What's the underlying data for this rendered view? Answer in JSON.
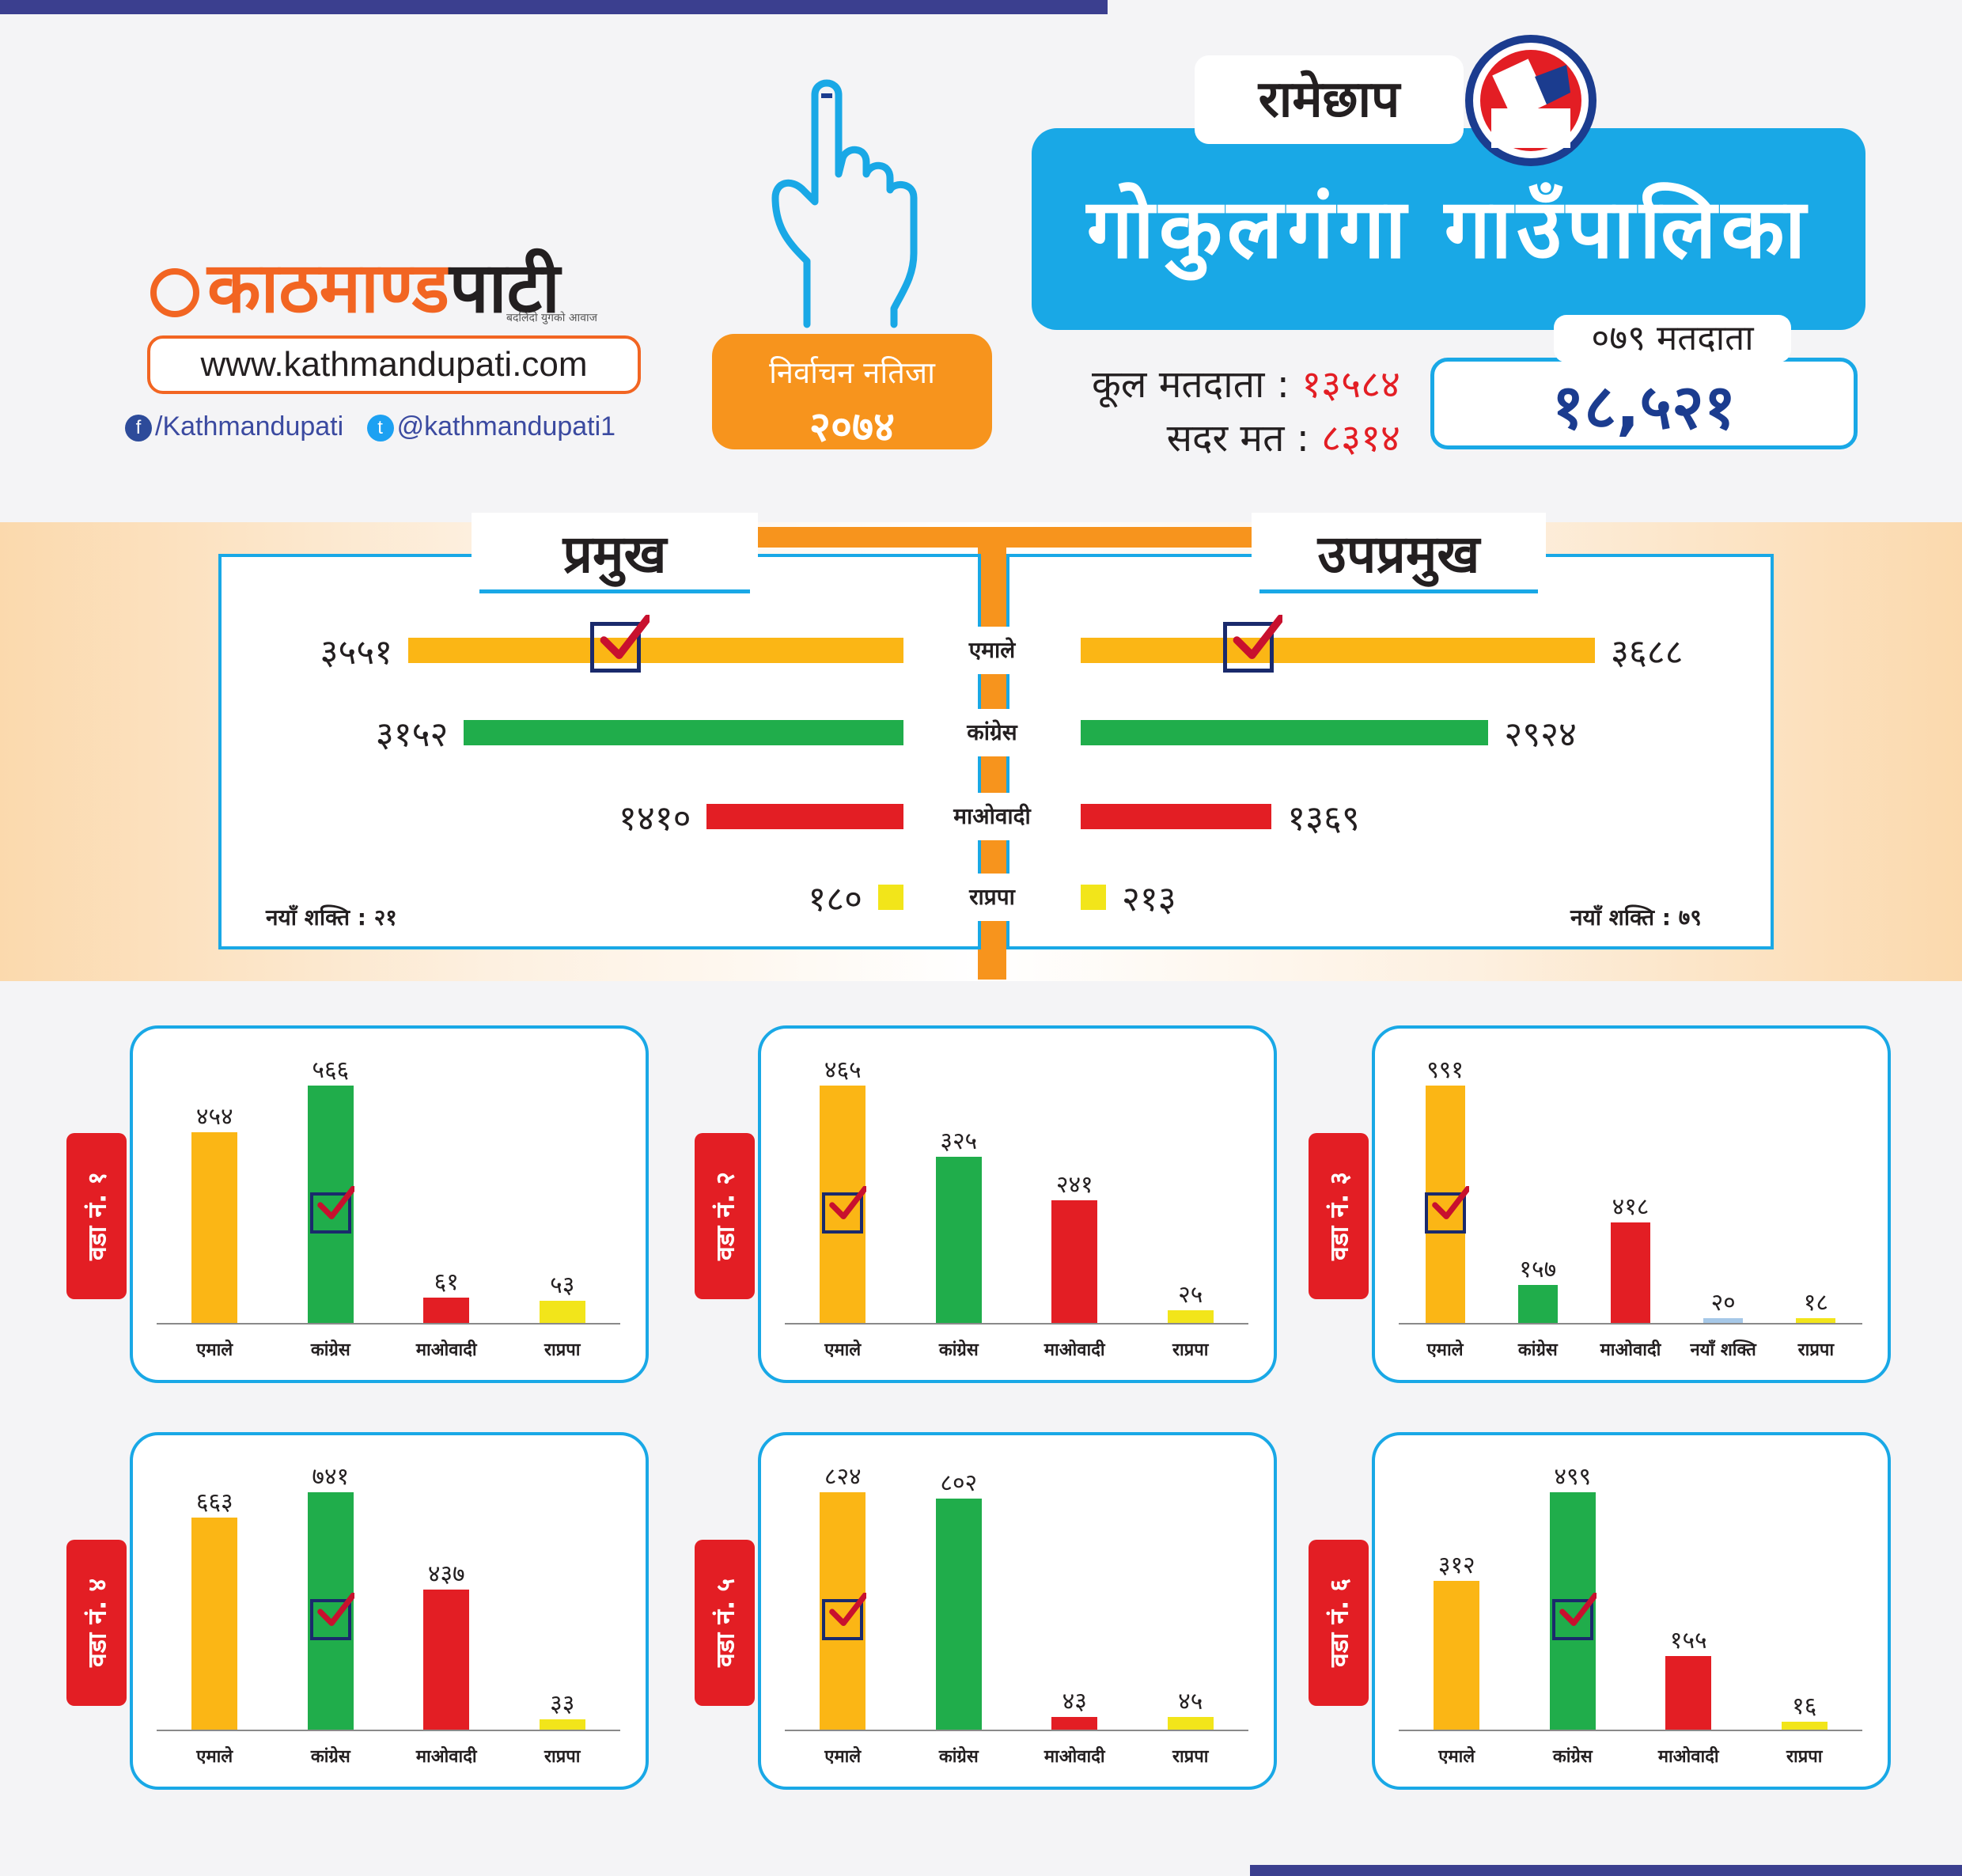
{
  "brand": {
    "logo_part1": "काठमाण्ड",
    "logo_part2": "पाटी",
    "tagline": "बदलिंदो युगको आवाज",
    "website": "www.kathmandupati.com",
    "facebook": "/Kathmandupati",
    "twitter": "@kathmandupati1"
  },
  "election": {
    "result_label": "निर्वाचन नतिजा",
    "year": "२०७४"
  },
  "header": {
    "district": "रामेछाप",
    "municipality": "गोकुलगंगा गाउँपालिका"
  },
  "voters": {
    "total_label": "कूल मतदाता :",
    "total_value": "१३५८४",
    "valid_label": "सदर मत :",
    "valid_value": "८३१४",
    "v079_label": "०७९ मतदाता",
    "v079_value": "१८,५२१"
  },
  "colors": {
    "uml": "#fbb615",
    "congress": "#20ad4b",
    "maoist": "#e31e24",
    "rpp": "#f2e51a",
    "new": "#a6c8e8",
    "accent": "#19a8e6",
    "orange": "#f7941d"
  },
  "chart_data": [
    {
      "type": "bar",
      "title": "प्रमुख",
      "categories": [
        "एमाले",
        "कांग्रेस",
        "माओवादी",
        "राप्रपा"
      ],
      "values": [
        3551,
        3152,
        1410,
        180
      ],
      "value_labels": [
        "३५५१",
        "३१५२",
        "१४१०",
        "१८०"
      ],
      "winner": "एमाले",
      "note": "नयाँ शक्ति : २१"
    },
    {
      "type": "bar",
      "title": "उपप्रमुख",
      "categories": [
        "एमाले",
        "कांग्रेस",
        "माओवादी",
        "राप्रपा"
      ],
      "values": [
        3688,
        2924,
        1369,
        213
      ],
      "value_labels": [
        "३६८८",
        "२९२४",
        "१३६९",
        "२१३"
      ],
      "winner": "एमाले",
      "note": "नयाँ शक्ति : ७९"
    },
    {
      "type": "bar",
      "title": "वडा नं. १",
      "categories": [
        "एमाले",
        "कांग्रेस",
        "माओवादी",
        "राप्रपा"
      ],
      "values": [
        454,
        566,
        61,
        53
      ],
      "value_labels": [
        "४५४",
        "५६६",
        "६१",
        "५३"
      ],
      "winner": "कांग्रेस"
    },
    {
      "type": "bar",
      "title": "वडा नं. २",
      "categories": [
        "एमाले",
        "कांग्रेस",
        "माओवादी",
        "राप्रपा"
      ],
      "values": [
        465,
        325,
        241,
        25
      ],
      "value_labels": [
        "४६५",
        "३२५",
        "२४१",
        "२५"
      ],
      "winner": "एमाले"
    },
    {
      "type": "bar",
      "title": "वडा नं. ३",
      "categories": [
        "एमाले",
        "कांग्रेस",
        "माओवादी",
        "नयाँ शक्ति",
        "राप्रपा"
      ],
      "values": [
        991,
        157,
        418,
        20,
        18
      ],
      "value_labels": [
        "९९१",
        "१५७",
        "४१८",
        "२०",
        "१८"
      ],
      "winner": "एमाले"
    },
    {
      "type": "bar",
      "title": "वडा नं. ४",
      "categories": [
        "एमाले",
        "कांग्रेस",
        "माओवादी",
        "राप्रपा"
      ],
      "values": [
        663,
        741,
        437,
        33
      ],
      "value_labels": [
        "६६३",
        "७४१",
        "४३७",
        "३३"
      ],
      "winner": "कांग्रेस"
    },
    {
      "type": "bar",
      "title": "वडा नं. ५",
      "categories": [
        "एमाले",
        "कांग्रेस",
        "माओवादी",
        "राप्रपा"
      ],
      "values": [
        824,
        802,
        43,
        45
      ],
      "value_labels": [
        "८२४",
        "८०२",
        "४३",
        "४५"
      ],
      "winner": "एमाले"
    },
    {
      "type": "bar",
      "title": "वडा नं. ६",
      "categories": [
        "एमाले",
        "कांग्रेस",
        "माओवादी",
        "राप्रपा"
      ],
      "values": [
        312,
        499,
        155,
        16
      ],
      "value_labels": [
        "३१२",
        "४९९",
        "१५५",
        "१६"
      ],
      "winner": "कांग्रेस"
    }
  ]
}
